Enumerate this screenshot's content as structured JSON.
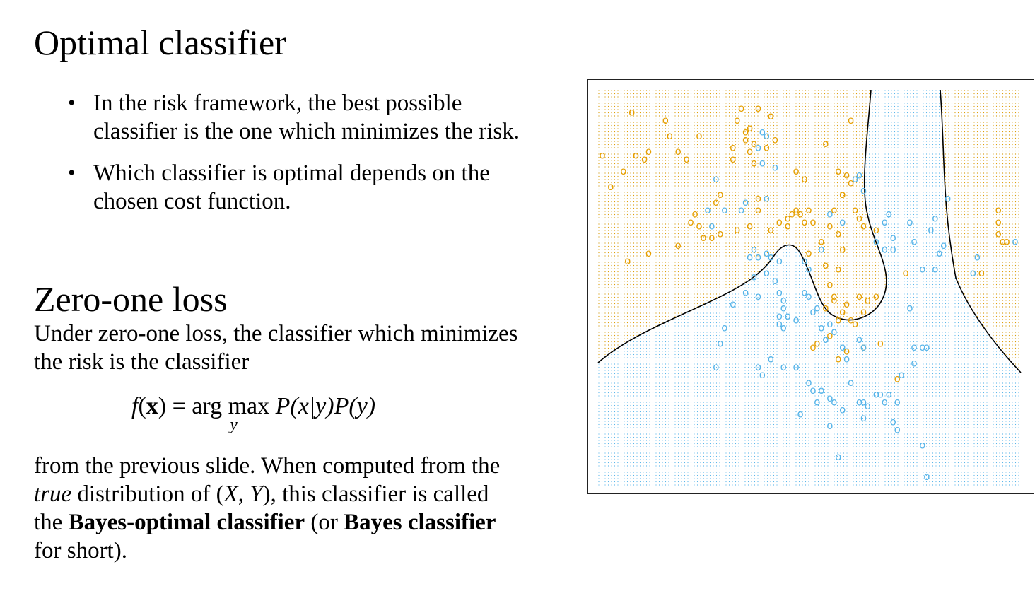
{
  "slide": {
    "title": "Optimal classifier",
    "bullets": [
      "In the risk framework, the best possible classifier is the one which minimizes the risk.",
      "Which classifier is optimal depends on the chosen cost function."
    ],
    "subtitle": "Zero-one loss",
    "paragraph1": "Under zero-one loss, the classifier which minimizes the risk is the classifier",
    "formula": {
      "lhs_fn": "f",
      "lhs_arg": "x",
      "operator": "arg max",
      "subscript": "y",
      "rhs": "P(x|y)P(y)"
    },
    "paragraph2": {
      "t1": "from the previous slide. When computed from the ",
      "t2": "true",
      "t3": " distribution of (",
      "t4": "X",
      "t5": ", ",
      "t6": "Y",
      "t7": "), this classifier is called the ",
      "t8": "Bayes-optimal classifier",
      "t9": " (or ",
      "t10": "Bayes classifier",
      "t11": " for short)."
    }
  },
  "colors": {
    "class_orange": "#E69F00",
    "class_blue": "#56B4E9",
    "boundary": "#000000"
  },
  "chart_data": {
    "type": "scatter",
    "title": "",
    "xlabel": "",
    "ylabel": "",
    "axes_visible": false,
    "background_grid": "dotted, colored by predicted class",
    "decision_boundary": "black curve",
    "symbol": "o",
    "series": [
      {
        "class": "orange",
        "points": [
          [
            0.01,
            0.84
          ],
          [
            0.03,
            0.76
          ],
          [
            0.06,
            0.8
          ],
          [
            0.08,
            0.95
          ],
          [
            0.09,
            0.84
          ],
          [
            0.11,
            0.83
          ],
          [
            0.12,
            0.85
          ],
          [
            0.16,
            0.93
          ],
          [
            0.17,
            0.89
          ],
          [
            0.19,
            0.85
          ],
          [
            0.21,
            0.83
          ],
          [
            0.24,
            0.89
          ],
          [
            0.22,
            0.67
          ],
          [
            0.23,
            0.69
          ],
          [
            0.29,
            0.74
          ],
          [
            0.32,
            0.83
          ],
          [
            0.33,
            0.93
          ],
          [
            0.34,
            0.96
          ],
          [
            0.35,
            0.9
          ],
          [
            0.35,
            0.88
          ],
          [
            0.36,
            0.91
          ],
          [
            0.37,
            0.87
          ],
          [
            0.36,
            0.85
          ],
          [
            0.38,
            0.96
          ],
          [
            0.41,
            0.94
          ],
          [
            0.42,
            0.88
          ],
          [
            0.38,
            0.73
          ],
          [
            0.38,
            0.7
          ],
          [
            0.36,
            0.66
          ],
          [
            0.33,
            0.65
          ],
          [
            0.28,
            0.72
          ],
          [
            0.29,
            0.64
          ],
          [
            0.27,
            0.63
          ],
          [
            0.25,
            0.63
          ],
          [
            0.24,
            0.66
          ],
          [
            0.19,
            0.61
          ],
          [
            0.12,
            0.59
          ],
          [
            0.07,
            0.57
          ],
          [
            0.41,
            0.65
          ],
          [
            0.43,
            0.67
          ],
          [
            0.45,
            0.68
          ],
          [
            0.46,
            0.69
          ],
          [
            0.47,
            0.7
          ],
          [
            0.45,
            0.66
          ],
          [
            0.51,
            0.67
          ],
          [
            0.53,
            0.62
          ],
          [
            0.5,
            0.59
          ],
          [
            0.55,
            0.66
          ],
          [
            0.57,
            0.64
          ],
          [
            0.54,
            0.56
          ],
          [
            0.57,
            0.55
          ],
          [
            0.58,
            0.6
          ],
          [
            0.55,
            0.51
          ],
          [
            0.56,
            0.48
          ],
          [
            0.56,
            0.47
          ],
          [
            0.54,
            0.45
          ],
          [
            0.58,
            0.44
          ],
          [
            0.59,
            0.46
          ],
          [
            0.57,
            0.42
          ],
          [
            0.6,
            0.42
          ],
          [
            0.61,
            0.41
          ],
          [
            0.63,
            0.44
          ],
          [
            0.62,
            0.48
          ],
          [
            0.55,
            0.38
          ],
          [
            0.52,
            0.36
          ],
          [
            0.51,
            0.35
          ],
          [
            0.59,
            0.34
          ],
          [
            0.57,
            0.32
          ],
          [
            0.47,
            0.8
          ],
          [
            0.49,
            0.78
          ],
          [
            0.57,
            0.8
          ],
          [
            0.59,
            0.79
          ],
          [
            0.6,
            0.77
          ],
          [
            0.58,
            0.74
          ],
          [
            0.56,
            0.7
          ],
          [
            0.54,
            0.87
          ],
          [
            0.6,
            0.93
          ],
          [
            0.62,
            0.68
          ],
          [
            0.63,
            0.66
          ],
          [
            0.48,
            0.69
          ],
          [
            0.49,
            0.67
          ],
          [
            0.5,
            0.7
          ],
          [
            0.58,
            0.74
          ],
          [
            0.61,
            0.7
          ],
          [
            0.64,
            0.47
          ],
          [
            0.66,
            0.48
          ],
          [
            0.63,
            0.35
          ],
          [
            0.67,
            0.36
          ],
          [
            0.95,
            0.7
          ],
          [
            0.95,
            0.67
          ],
          [
            0.95,
            0.64
          ],
          [
            0.96,
            0.62
          ],
          [
            0.97,
            0.62
          ],
          [
            0.91,
            0.54
          ],
          [
            0.73,
            0.54
          ],
          [
            0.71,
            0.27
          ],
          [
            0.66,
            0.65
          ],
          [
            0.32,
            0.86
          ],
          [
            0.37,
            0.82
          ],
          [
            0.4,
            0.86
          ]
        ]
      },
      {
        "class": "blue",
        "points": [
          [
            0.39,
            0.9
          ],
          [
            0.4,
            0.89
          ],
          [
            0.38,
            0.86
          ],
          [
            0.39,
            0.82
          ],
          [
            0.42,
            0.81
          ],
          [
            0.28,
            0.78
          ],
          [
            0.4,
            0.73
          ],
          [
            0.35,
            0.72
          ],
          [
            0.3,
            0.7
          ],
          [
            0.26,
            0.7
          ],
          [
            0.27,
            0.66
          ],
          [
            0.34,
            0.7
          ],
          [
            0.36,
            0.58
          ],
          [
            0.37,
            0.6
          ],
          [
            0.38,
            0.58
          ],
          [
            0.4,
            0.59
          ],
          [
            0.41,
            0.58
          ],
          [
            0.43,
            0.57
          ],
          [
            0.49,
            0.57
          ],
          [
            0.5,
            0.55
          ],
          [
            0.42,
            0.52
          ],
          [
            0.4,
            0.54
          ],
          [
            0.37,
            0.53
          ],
          [
            0.35,
            0.49
          ],
          [
            0.38,
            0.48
          ],
          [
            0.43,
            0.49
          ],
          [
            0.44,
            0.47
          ],
          [
            0.44,
            0.45
          ],
          [
            0.43,
            0.43
          ],
          [
            0.43,
            0.41
          ],
          [
            0.45,
            0.43
          ],
          [
            0.44,
            0.4
          ],
          [
            0.47,
            0.42
          ],
          [
            0.49,
            0.49
          ],
          [
            0.5,
            0.48
          ],
          [
            0.51,
            0.44
          ],
          [
            0.52,
            0.45
          ],
          [
            0.53,
            0.4
          ],
          [
            0.55,
            0.41
          ],
          [
            0.54,
            0.37
          ],
          [
            0.56,
            0.39
          ],
          [
            0.58,
            0.35
          ],
          [
            0.62,
            0.37
          ],
          [
            0.63,
            0.35
          ],
          [
            0.59,
            0.32
          ],
          [
            0.32,
            0.46
          ],
          [
            0.3,
            0.4
          ],
          [
            0.29,
            0.36
          ],
          [
            0.28,
            0.3
          ],
          [
            0.38,
            0.3
          ],
          [
            0.41,
            0.32
          ],
          [
            0.39,
            0.28
          ],
          [
            0.44,
            0.3
          ],
          [
            0.47,
            0.3
          ],
          [
            0.5,
            0.26
          ],
          [
            0.51,
            0.24
          ],
          [
            0.53,
            0.24
          ],
          [
            0.52,
            0.21
          ],
          [
            0.55,
            0.22
          ],
          [
            0.56,
            0.21
          ],
          [
            0.6,
            0.26
          ],
          [
            0.62,
            0.21
          ],
          [
            0.63,
            0.21
          ],
          [
            0.64,
            0.2
          ],
          [
            0.66,
            0.23
          ],
          [
            0.63,
            0.17
          ],
          [
            0.58,
            0.19
          ],
          [
            0.55,
            0.15
          ],
          [
            0.48,
            0.18
          ],
          [
            0.57,
            0.07
          ],
          [
            0.67,
            0.23
          ],
          [
            0.68,
            0.21
          ],
          [
            0.69,
            0.23
          ],
          [
            0.72,
            0.28
          ],
          [
            0.71,
            0.21
          ],
          [
            0.7,
            0.16
          ],
          [
            0.75,
            0.31
          ],
          [
            0.71,
            0.14
          ],
          [
            0.77,
            0.1
          ],
          [
            0.78,
            0.02
          ],
          [
            0.78,
            0.35
          ],
          [
            0.77,
            0.35
          ],
          [
            0.75,
            0.35
          ],
          [
            0.74,
            0.45
          ],
          [
            0.77,
            0.55
          ],
          [
            0.8,
            0.55
          ],
          [
            0.82,
            0.61
          ],
          [
            0.81,
            0.59
          ],
          [
            0.75,
            0.62
          ],
          [
            0.7,
            0.63
          ],
          [
            0.66,
            0.62
          ],
          [
            0.68,
            0.6
          ],
          [
            0.68,
            0.67
          ],
          [
            0.69,
            0.69
          ],
          [
            0.7,
            0.6
          ],
          [
            0.74,
            0.67
          ],
          [
            0.79,
            0.65
          ],
          [
            0.8,
            0.68
          ],
          [
            0.83,
            0.73
          ],
          [
            0.89,
            0.54
          ],
          [
            0.9,
            0.58
          ],
          [
            0.99,
            0.62
          ],
          [
            0.62,
            0.79
          ],
          [
            0.61,
            0.78
          ],
          [
            0.63,
            0.75
          ],
          [
            0.55,
            0.69
          ],
          [
            0.58,
            0.67
          ],
          [
            0.53,
            0.6
          ]
        ]
      }
    ]
  }
}
